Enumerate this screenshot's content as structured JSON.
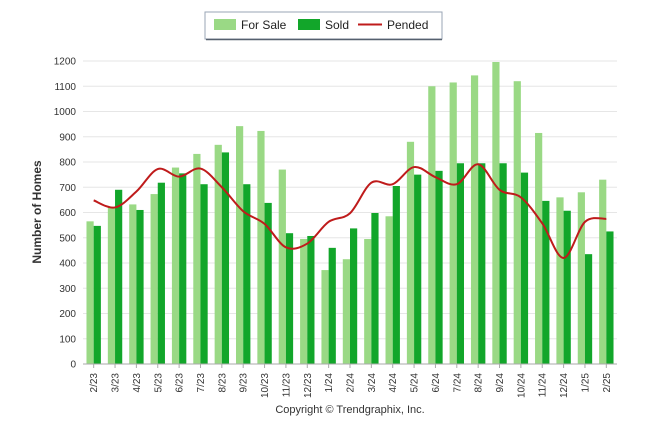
{
  "chart_data": {
    "type": "bar",
    "title": "",
    "ylabel": "Number of Homes",
    "xlabel": "",
    "ylim": [
      0,
      1200
    ],
    "yticks": [
      0,
      100,
      200,
      300,
      400,
      500,
      600,
      700,
      800,
      900,
      1000,
      1100,
      1200
    ],
    "grid": true,
    "legend_position": "top-center",
    "categories": [
      "2/23",
      "3/23",
      "4/23",
      "5/23",
      "6/23",
      "7/23",
      "8/23",
      "9/23",
      "10/23",
      "11/23",
      "12/23",
      "1/24",
      "2/24",
      "3/24",
      "4/24",
      "5/24",
      "6/24",
      "7/24",
      "8/24",
      "9/24",
      "10/24",
      "11/24",
      "12/24",
      "1/25",
      "2/25"
    ],
    "series": [
      {
        "name": "For Sale",
        "type": "bar",
        "color": "#9ad985",
        "values": [
          565,
          620,
          632,
          673,
          778,
          832,
          868,
          942,
          923,
          770,
          495,
          372,
          415,
          495,
          585,
          880,
          1100,
          1115,
          1143,
          1196,
          1120,
          915,
          660,
          680,
          730
        ]
      },
      {
        "name": "Sold",
        "type": "bar",
        "color": "#12a62a",
        "values": [
          547,
          690,
          610,
          718,
          755,
          712,
          838,
          712,
          638,
          518,
          507,
          460,
          537,
          598,
          705,
          750,
          765,
          795,
          795,
          795,
          758,
          646,
          607,
          435,
          525
        ]
      },
      {
        "name": "Pended",
        "type": "line",
        "color": "#bf1b1b",
        "values": [
          648,
          620,
          683,
          772,
          742,
          774,
          700,
          605,
          555,
          462,
          477,
          563,
          597,
          718,
          712,
          780,
          740,
          712,
          791,
          690,
          660,
          557,
          420,
          563,
          575
        ]
      }
    ],
    "footer": "Copyright © Trendgraphix, Inc."
  }
}
